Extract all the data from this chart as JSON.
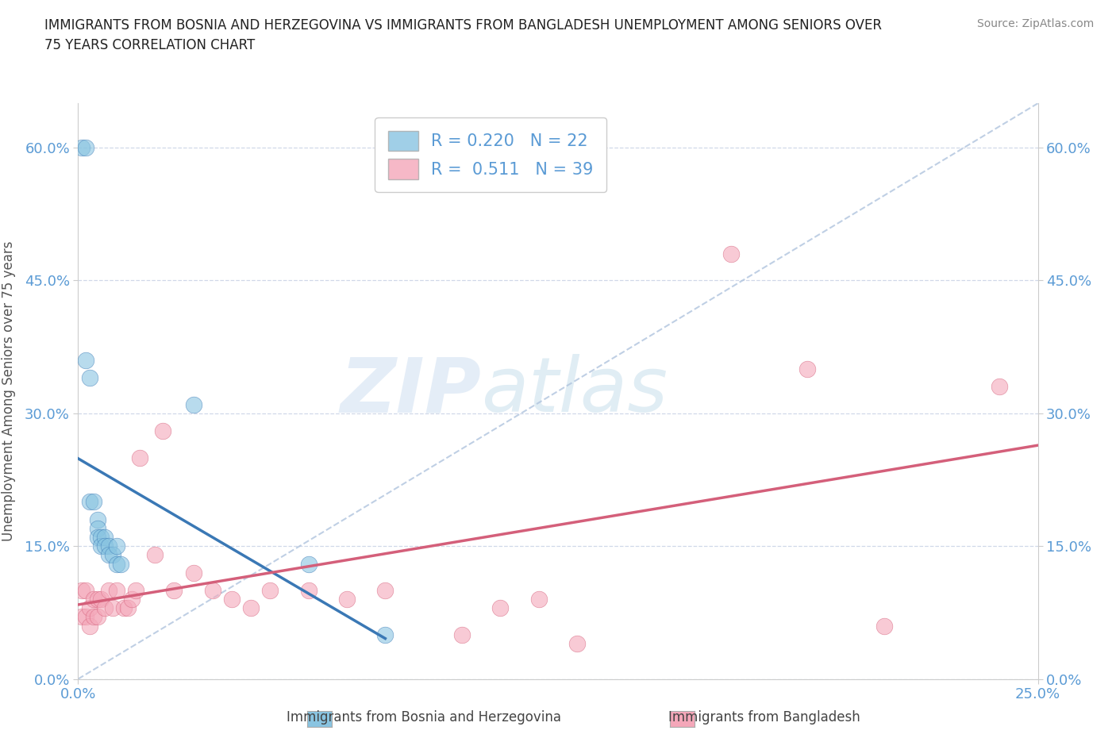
{
  "title": "IMMIGRANTS FROM BOSNIA AND HERZEGOVINA VS IMMIGRANTS FROM BANGLADESH UNEMPLOYMENT AMONG SENIORS OVER\n75 YEARS CORRELATION CHART",
  "source": "Source: ZipAtlas.com",
  "ylabel": "Unemployment Among Seniors over 75 years",
  "xlabel_bosnia": "Immigrants from Bosnia and Herzegovina",
  "xlabel_bangladesh": "Immigrants from Bangladesh",
  "watermark_zip": "ZIP",
  "watermark_atlas": "atlas",
  "legend_line1": "R = 0.220   N = 22",
  "legend_line2": "R =  0.511   N = 39",
  "xlim": [
    0.0,
    0.25
  ],
  "ylim": [
    0.0,
    0.65
  ],
  "yticks": [
    0.0,
    0.15,
    0.3,
    0.45,
    0.6
  ],
  "ytick_labels": [
    "0.0%",
    "15.0%",
    "30.0%",
    "45.0%",
    "60.0%"
  ],
  "xtick_left": "0.0%",
  "xtick_right": "25.0%",
  "color_bosnia": "#89c4e1",
  "color_bangladesh": "#f4a7b9",
  "trendline_color_bosnia": "#3a78b5",
  "trendline_color_bangladesh": "#d45f7a",
  "dashed_line_color": "#b0c4de",
  "grid_color": "#d0d8e8",
  "bosnia_x": [
    0.001,
    0.002,
    0.002,
    0.003,
    0.003,
    0.004,
    0.005,
    0.005,
    0.005,
    0.006,
    0.006,
    0.007,
    0.007,
    0.008,
    0.008,
    0.009,
    0.01,
    0.01,
    0.011,
    0.03,
    0.06,
    0.08
  ],
  "bosnia_y": [
    0.6,
    0.6,
    0.36,
    0.34,
    0.2,
    0.2,
    0.18,
    0.17,
    0.16,
    0.16,
    0.15,
    0.16,
    0.15,
    0.15,
    0.14,
    0.14,
    0.15,
    0.13,
    0.13,
    0.31,
    0.13,
    0.05
  ],
  "bangladesh_x": [
    0.001,
    0.001,
    0.002,
    0.002,
    0.003,
    0.003,
    0.004,
    0.004,
    0.005,
    0.005,
    0.006,
    0.007,
    0.008,
    0.009,
    0.01,
    0.012,
    0.013,
    0.014,
    0.015,
    0.016,
    0.02,
    0.022,
    0.025,
    0.03,
    0.035,
    0.04,
    0.045,
    0.05,
    0.06,
    0.07,
    0.08,
    0.1,
    0.11,
    0.12,
    0.13,
    0.17,
    0.19,
    0.21,
    0.24
  ],
  "bangladesh_y": [
    0.1,
    0.07,
    0.1,
    0.07,
    0.08,
    0.06,
    0.09,
    0.07,
    0.09,
    0.07,
    0.09,
    0.08,
    0.1,
    0.08,
    0.1,
    0.08,
    0.08,
    0.09,
    0.1,
    0.25,
    0.14,
    0.28,
    0.1,
    0.12,
    0.1,
    0.09,
    0.08,
    0.1,
    0.1,
    0.09,
    0.1,
    0.05,
    0.08,
    0.09,
    0.04,
    0.48,
    0.35,
    0.06,
    0.33
  ],
  "title_fontsize": 12,
  "source_fontsize": 10,
  "tick_fontsize": 13,
  "ylabel_fontsize": 12,
  "legend_fontsize": 15,
  "watermark_fontsize_zip": 70,
  "watermark_fontsize_atlas": 70
}
